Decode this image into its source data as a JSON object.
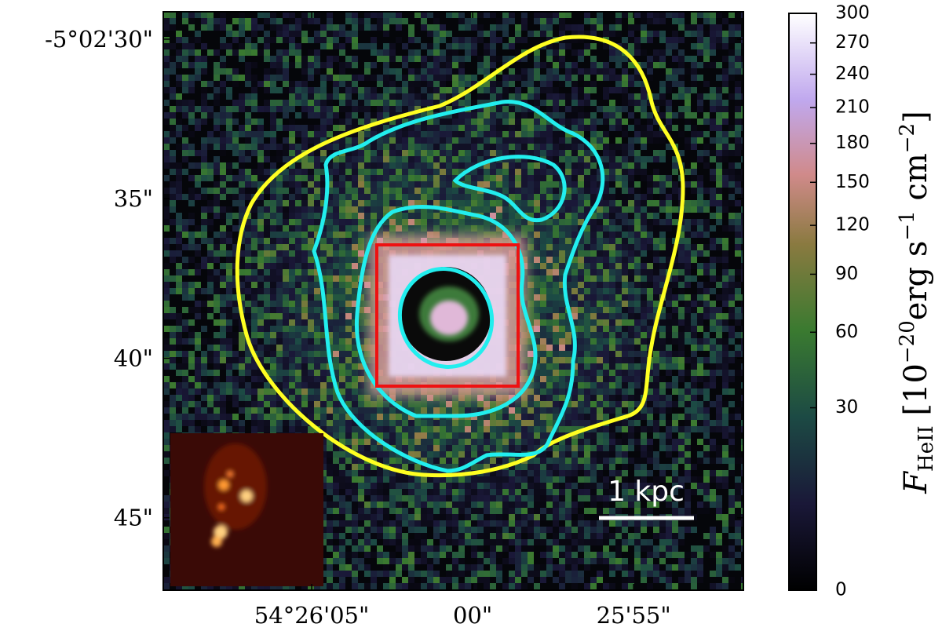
{
  "chart_data": {
    "type": "image",
    "xlim": [
      9.61,
      -8.41
    ],
    "xticks": [
      {
        "value": 5,
        "label": "54°26'05\""
      },
      {
        "value": 0,
        "label": "00\""
      },
      {
        "value": -5,
        "label": "25'55\""
      }
    ],
    "ylim": [
      29.14,
      47.27
    ],
    "yticks": [
      {
        "value": 30,
        "label": "-5°02'30\""
      },
      {
        "value": 35,
        "label": "35\""
      },
      {
        "value": 40,
        "label": "40\""
      },
      {
        "value": 45,
        "label": "45\""
      }
    ],
    "scale_bar_label": "1 kpc",
    "colorbar": {
      "label_parts": [
        "F",
        "HeII",
        " [10",
        "−20",
        "erg s",
        "−1",
        " cm",
        "−2",
        "]"
      ],
      "lim": [
        0,
        300
      ],
      "ticks": [
        0,
        30,
        60,
        90,
        120,
        150,
        180,
        210,
        240,
        270,
        300
      ],
      "scale": "sqrt"
    }
  }
}
